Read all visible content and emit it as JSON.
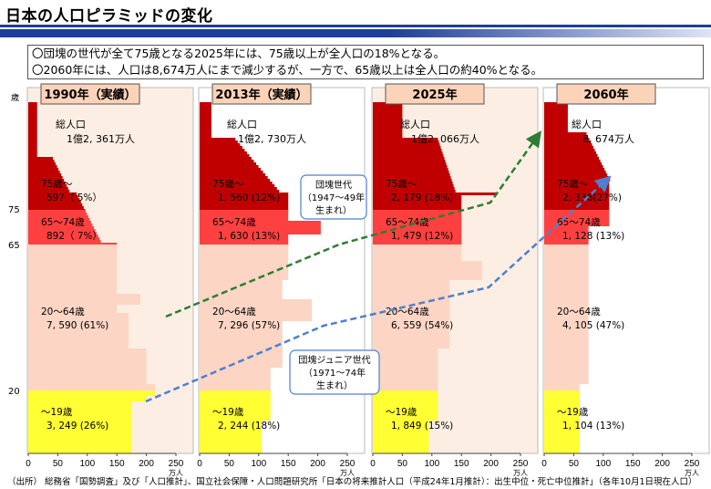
{
  "page_title": "日本の人口ピラミッドの変化",
  "notes": [
    "〇団塊の世代が全て75歳となる2025年には、75歳以上が全人口の18%となる。",
    "〇2060年には、人口は8,674万人にまで減少するが、一方で、65歳以上は全人口の約40%となる。"
  ],
  "source": "（出所） 総務省「国勢調査」及び「人口推計」、国立社会保障・人口問題研究所「日本の将来推計人口（平成24年1月推計）：出生中位・死亡中位推計」（各年10月1日現在人口）",
  "colors": {
    "age75plus": "#c00000",
    "age65_74": "#ff4040",
    "age20_64": "#fcd5c4",
    "age0_19": "#ffff33",
    "panel_bg": "#fbe5d6",
    "green_arrow": "#2e7d32",
    "blue_arrow": "#4f7fd0"
  },
  "chart_data": {
    "type": "bar",
    "y_axis_title": "歳",
    "y_tick_labels": [
      "75",
      "65",
      "20"
    ],
    "x_ticks": [
      "0",
      "50",
      "100",
      "150",
      "200",
      "250"
    ],
    "x_unit": "万人",
    "xlim": [
      0,
      250
    ],
    "panels": [
      {
        "year_label": "1990年（実績）",
        "total_label": "総人口",
        "total_value": "1億2, 361万人",
        "groups": [
          {
            "name": "75歳～",
            "value": "597（ 5%）"
          },
          {
            "name": "65～74歳",
            "value": "892（ 7%）"
          },
          {
            "name": "20～64歳",
            "value": "7, 590 (61%)"
          },
          {
            "name": "～19歳",
            "value": "3, 249 (26%)"
          }
        ]
      },
      {
        "year_label": "2013年（実績）",
        "total_label": "総人口",
        "total_value": "1億2, 730万人",
        "groups": [
          {
            "name": "75歳～",
            "value": "1, 560 (12%)"
          },
          {
            "name": "65～74歳",
            "value": "1, 630 (13%)"
          },
          {
            "name": "20～64歳",
            "value": "7, 296 (57%)"
          },
          {
            "name": "～19歳",
            "value": "2, 244 (18%)"
          }
        ]
      },
      {
        "year_label": "2025年",
        "total_label": "総人口",
        "total_value": "1億2, 066万人",
        "groups": [
          {
            "name": "75歳～",
            "value": "2, 179 (18%)"
          },
          {
            "name": "65～74歳",
            "value": "1, 479 (12%)"
          },
          {
            "name": "20～64歳",
            "value": "6, 559 (54%)"
          },
          {
            "name": "～19歳",
            "value": "1, 849 (15%)"
          }
        ]
      },
      {
        "year_label": "2060年",
        "total_label": "総人口",
        "total_value": "8, 674万人",
        "groups": [
          {
            "name": "75歳～",
            "value": "2, 336(27%)"
          },
          {
            "name": "65～74歳",
            "value": "1, 128 (13%)"
          },
          {
            "name": "20～64歳",
            "value": "4, 105 (47%)"
          },
          {
            "name": "～19歳",
            "value": "1, 104 (13%)"
          }
        ]
      }
    ],
    "annotations": [
      {
        "text": [
          "団塊世代",
          "（1947～49年",
          "生まれ）"
        ]
      },
      {
        "text": [
          "団塊ジュニア世代",
          "（1971～74年",
          "生まれ）"
        ]
      }
    ]
  }
}
